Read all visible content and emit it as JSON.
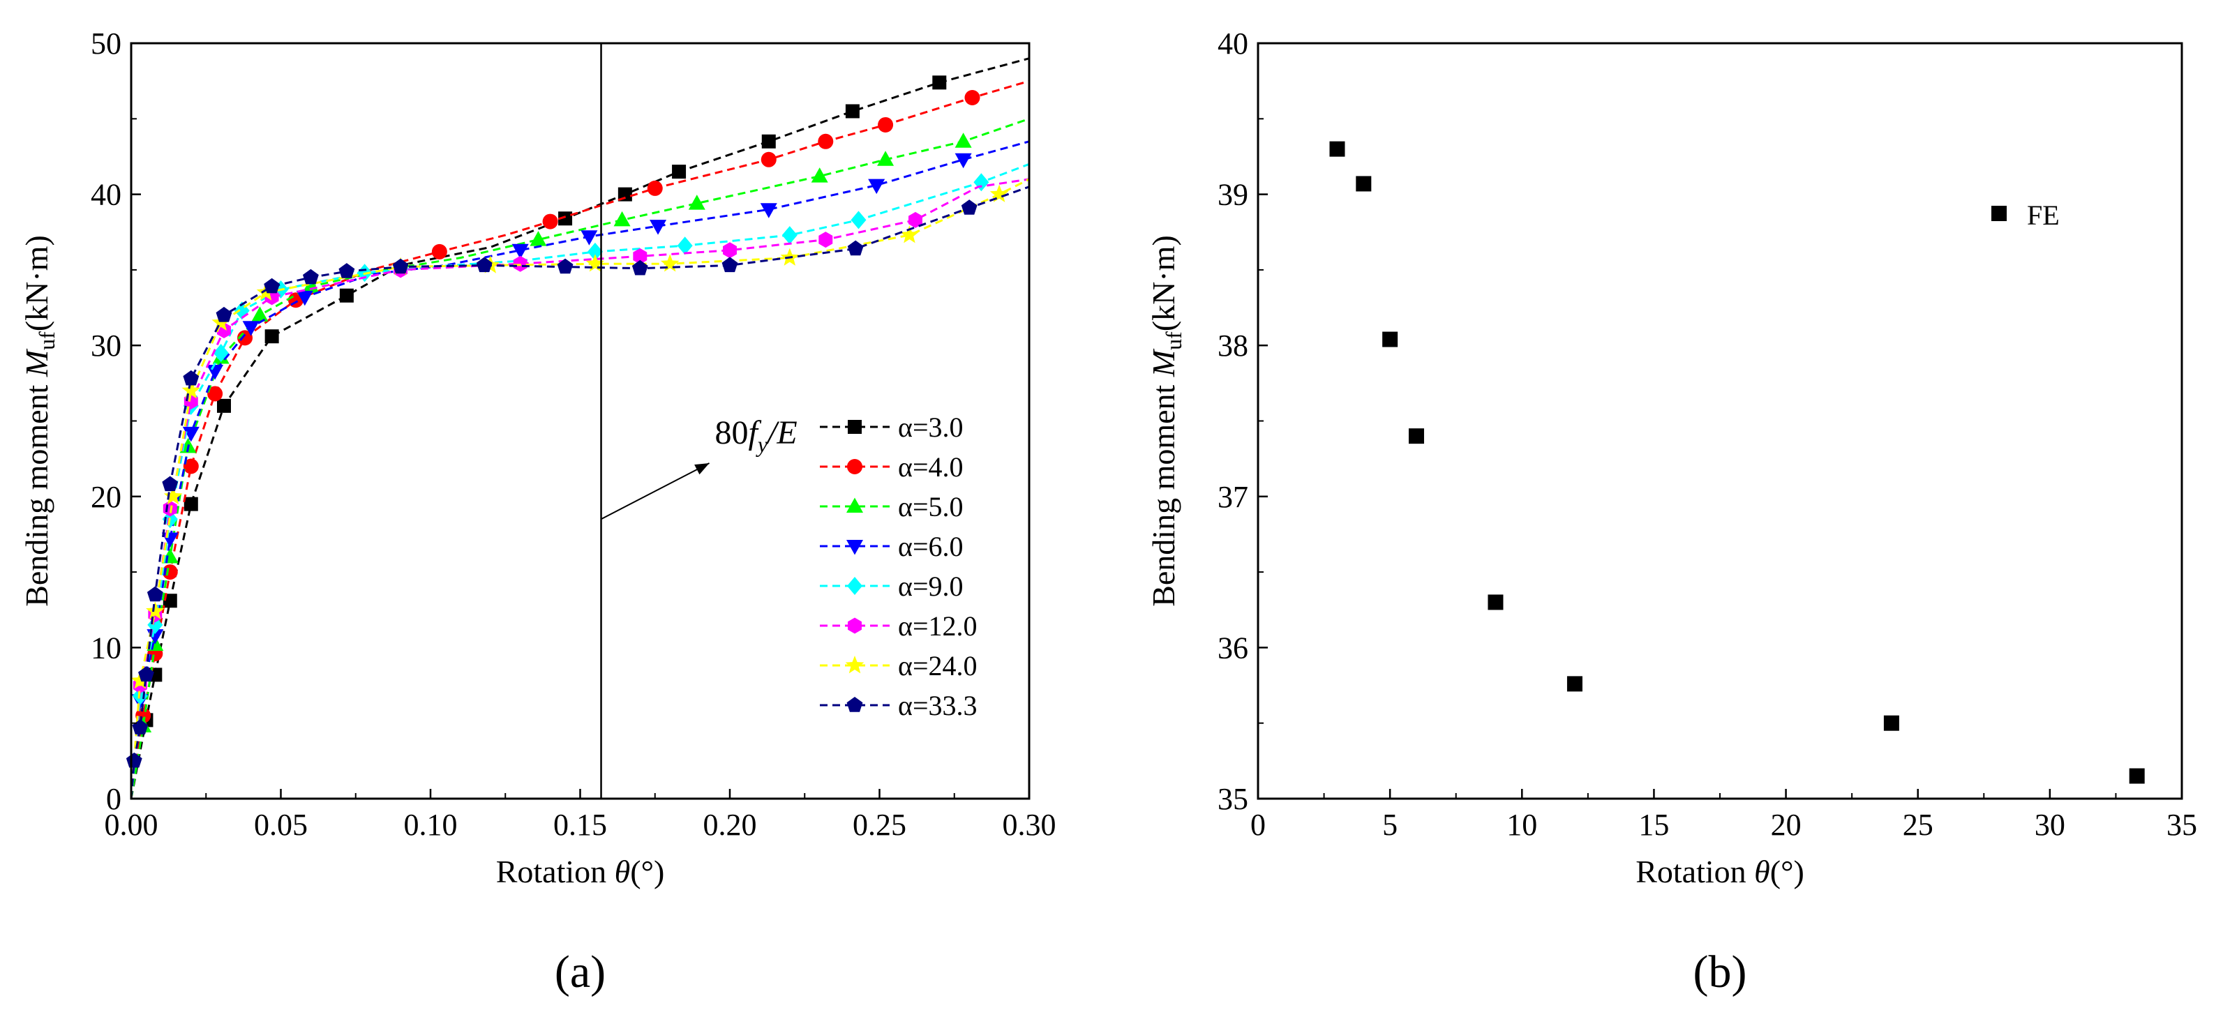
{
  "chart_data": [
    {
      "type": "line",
      "panel": "(a)",
      "xlabel": "Rotation θ(°)",
      "ylabel": "Bending moment M_uf(kN·m)",
      "ylabel_parts": {
        "pre": "Bending moment ",
        "sym": "M",
        "sub": "uf",
        "post": "(kN·m)"
      },
      "xlabel_parts": {
        "pre": "Rotation ",
        "sym": "θ",
        "post": "(°)"
      },
      "xlim": [
        0,
        0.3
      ],
      "ylim": [
        0,
        50
      ],
      "xticks": [
        "0.00",
        "0.05",
        "0.10",
        "0.15",
        "0.20",
        "0.25",
        "0.30"
      ],
      "yticks": [
        "0",
        "10",
        "20",
        "30",
        "40",
        "50"
      ],
      "xtick_values": [
        0,
        0.05,
        0.1,
        0.15,
        0.2,
        0.25,
        0.3
      ],
      "ytick_values": [
        0,
        10,
        20,
        30,
        40,
        50
      ],
      "vline": 0.157,
      "annotation": {
        "text_num": "80",
        "text_f": "f",
        "text_sub": "y",
        "text_tail": "/E",
        "x": 0.195,
        "y": 23.5,
        "arrow_to": [
          0.157,
          18.5
        ]
      },
      "series": [
        {
          "name": "α=3.0",
          "color": "#000000",
          "marker": "square",
          "x": [
            0,
            0.005,
            0.008,
            0.013,
            0.02,
            0.031,
            0.047,
            0.072,
            0.09,
            0.12,
            0.145,
            0.165,
            0.183,
            0.213,
            0.241,
            0.27,
            0.3
          ],
          "y": [
            0,
            5.2,
            8.2,
            13.1,
            19.5,
            26.0,
            30.6,
            33.3,
            35.3,
            36.5,
            38.4,
            40.0,
            41.5,
            43.5,
            45.5,
            47.4,
            49.0
          ],
          "mx": [
            0.005,
            0.008,
            0.013,
            0.02,
            0.031,
            0.047,
            0.072,
            0.145,
            0.165,
            0.183,
            0.213,
            0.241,
            0.27
          ]
        },
        {
          "name": "α=4.0",
          "color": "#ff0000",
          "marker": "circle",
          "x": [
            0,
            0.004,
            0.008,
            0.013,
            0.02,
            0.028,
            0.038,
            0.055,
            0.08,
            0.103,
            0.125,
            0.14,
            0.175,
            0.213,
            0.232,
            0.252,
            0.281,
            0.3
          ],
          "y": [
            0,
            5.5,
            9.6,
            15.0,
            22.0,
            26.8,
            30.5,
            33.0,
            35.0,
            36.2,
            37.3,
            38.2,
            40.4,
            42.3,
            43.5,
            44.6,
            46.4,
            47.5
          ],
          "mx": [
            0.004,
            0.008,
            0.013,
            0.02,
            0.028,
            0.038,
            0.055,
            0.103,
            0.14,
            0.175,
            0.213,
            0.232,
            0.252,
            0.281
          ]
        },
        {
          "name": "α=5.0",
          "color": "#00ff00",
          "marker": "triangle-up",
          "x": [
            0,
            0.004,
            0.008,
            0.013,
            0.019,
            0.03,
            0.043,
            0.06,
            0.085,
            0.11,
            0.136,
            0.164,
            0.189,
            0.23,
            0.252,
            0.278,
            0.3
          ],
          "y": [
            0,
            4.8,
            10.2,
            16.0,
            23.3,
            29.2,
            32.0,
            33.9,
            35.0,
            35.8,
            37.0,
            38.3,
            39.4,
            41.2,
            42.3,
            43.5,
            45.0
          ],
          "mx": [
            0.004,
            0.008,
            0.013,
            0.019,
            0.03,
            0.043,
            0.06,
            0.136,
            0.164,
            0.189,
            0.23,
            0.252,
            0.278
          ]
        },
        {
          "name": "α=6.0",
          "color": "#0000ff",
          "marker": "triangle-down",
          "x": [
            0,
            0.003,
            0.008,
            0.013,
            0.02,
            0.028,
            0.04,
            0.058,
            0.08,
            0.105,
            0.13,
            0.153,
            0.176,
            0.213,
            0.249,
            0.278,
            0.3
          ],
          "y": [
            0,
            6.5,
            10.8,
            17.2,
            24.2,
            28.3,
            31.2,
            33.2,
            34.7,
            35.3,
            36.3,
            37.2,
            37.9,
            39.0,
            40.6,
            42.3,
            43.5
          ],
          "mx": [
            0.003,
            0.008,
            0.013,
            0.02,
            0.028,
            0.04,
            0.058,
            0.13,
            0.153,
            0.176,
            0.213,
            0.249,
            0.278
          ]
        },
        {
          "name": "α=9.0",
          "color": "#00ffff",
          "marker": "diamond",
          "x": [
            0,
            0.003,
            0.008,
            0.013,
            0.02,
            0.03,
            0.037,
            0.05,
            0.078,
            0.107,
            0.13,
            0.155,
            0.185,
            0.22,
            0.243,
            0.284,
            0.3
          ],
          "y": [
            0,
            6.8,
            11.5,
            18.5,
            26.0,
            29.5,
            32.3,
            33.7,
            34.8,
            35.3,
            35.6,
            36.2,
            36.6,
            37.3,
            38.3,
            40.8,
            42.0
          ],
          "mx": [
            0.003,
            0.008,
            0.013,
            0.02,
            0.03,
            0.037,
            0.05,
            0.078,
            0.155,
            0.185,
            0.22,
            0.243,
            0.284
          ]
        },
        {
          "name": "α=12.0",
          "color": "#ff00ff",
          "marker": "hexagon",
          "x": [
            0,
            0.003,
            0.008,
            0.013,
            0.02,
            0.031,
            0.047,
            0.09,
            0.13,
            0.17,
            0.2,
            0.232,
            0.262,
            0.283,
            0.3
          ],
          "y": [
            0,
            7.5,
            12.2,
            19.2,
            26.3,
            31.0,
            33.2,
            35.0,
            35.4,
            35.9,
            36.3,
            37.0,
            38.3,
            40.5,
            41.0
          ],
          "mx": [
            0.003,
            0.008,
            0.013,
            0.02,
            0.031,
            0.047,
            0.09,
            0.13,
            0.17,
            0.2,
            0.232,
            0.262
          ]
        },
        {
          "name": "α=24.0",
          "color": "#ffff00",
          "marker": "star",
          "x": [
            0,
            0.003,
            0.008,
            0.014,
            0.02,
            0.03,
            0.045,
            0.09,
            0.12,
            0.155,
            0.18,
            0.22,
            0.26,
            0.29,
            0.3
          ],
          "y": [
            0,
            7.8,
            12.4,
            20.0,
            27.0,
            31.5,
            33.5,
            35.2,
            35.3,
            35.4,
            35.4,
            35.8,
            37.3,
            40.0,
            41.0
          ],
          "mx": [
            0.003,
            0.008,
            0.014,
            0.02,
            0.03,
            0.045,
            0.09,
            0.12,
            0.155,
            0.18,
            0.22,
            0.26,
            0.29
          ]
        },
        {
          "name": "α=33.3",
          "color": "#000080",
          "marker": "pentagon",
          "x": [
            0,
            0.001,
            0.003,
            0.005,
            0.008,
            0.013,
            0.02,
            0.031,
            0.047,
            0.06,
            0.072,
            0.09,
            0.118,
            0.145,
            0.17,
            0.2,
            0.242,
            0.28,
            0.3
          ],
          "y": [
            0,
            2.5,
            4.7,
            8.2,
            13.5,
            20.8,
            27.8,
            32.0,
            33.9,
            34.5,
            34.9,
            35.2,
            35.3,
            35.2,
            35.1,
            35.3,
            36.4,
            39.1,
            40.5
          ],
          "mx": [
            0.001,
            0.003,
            0.005,
            0.008,
            0.013,
            0.02,
            0.031,
            0.047,
            0.06,
            0.072,
            0.09,
            0.118,
            0.145,
            0.17,
            0.2,
            0.242,
            0.28
          ]
        }
      ]
    },
    {
      "type": "scatter",
      "panel": "(b)",
      "xlabel": "Rotation θ(°)",
      "ylabel": "Bending moment M_uf(kN·m)",
      "ylabel_parts": {
        "pre": "Bending moment ",
        "sym": "M",
        "sub": "uf",
        "post": "(kN·m)"
      },
      "xlabel_parts": {
        "pre": "Rotation ",
        "sym": "θ",
        "post": "(°)"
      },
      "xlim": [
        0,
        35
      ],
      "ylim": [
        35,
        40
      ],
      "xticks": [
        "0",
        "5",
        "10",
        "15",
        "20",
        "25",
        "30",
        "35"
      ],
      "yticks": [
        "35",
        "36",
        "37",
        "38",
        "39",
        "40"
      ],
      "xtick_values": [
        0,
        5,
        10,
        15,
        20,
        25,
        30,
        35
      ],
      "ytick_values": [
        35,
        36,
        37,
        38,
        39,
        40
      ],
      "series": [
        {
          "name": "FE",
          "color": "#000000",
          "marker": "square",
          "x": [
            3.0,
            4.0,
            5.0,
            6.0,
            9.0,
            12.0,
            24.0,
            33.3
          ],
          "y": [
            39.3,
            39.07,
            38.04,
            37.4,
            36.3,
            35.76,
            35.5,
            35.15
          ]
        }
      ]
    }
  ]
}
